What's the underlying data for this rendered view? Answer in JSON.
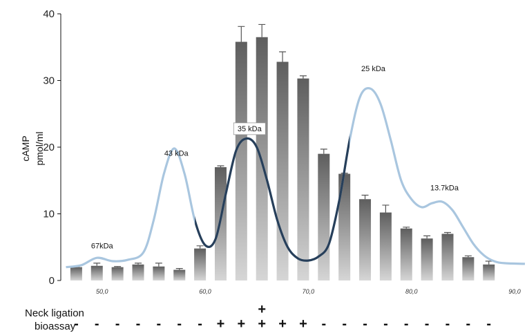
{
  "chart_data": {
    "type": "bar",
    "title": "",
    "ylabel_lines": [
      "cAMP",
      "pmol/ml"
    ],
    "ylim": [
      0,
      40
    ],
    "yticks": [
      0,
      10,
      20,
      30,
      40
    ],
    "xlim": [
      46,
      91
    ],
    "xticks": [
      50,
      60,
      70,
      80,
      90
    ],
    "xtick_labels": [
      "50,0",
      "60,0",
      "70,0",
      "80,0",
      "90,0"
    ],
    "grid": false,
    "bars": {
      "x": [
        47.5,
        49.5,
        51.5,
        53.5,
        55.5,
        57.5,
        59.5,
        61.5,
        63.5,
        65.5,
        67.5,
        69.5,
        71.5,
        73.5,
        75.5,
        77.5,
        79.5,
        81.5,
        83.5,
        85.5,
        87.5
      ],
      "values": [
        2.0,
        2.2,
        2.0,
        2.4,
        2.1,
        1.6,
        4.8,
        17.0,
        35.8,
        36.5,
        32.8,
        30.3,
        19.0,
        16.0,
        12.2,
        10.2,
        7.8,
        6.3,
        7.0,
        3.5,
        2.4
      ],
      "errors": [
        0.1,
        0.4,
        0.1,
        0.2,
        0.5,
        0.2,
        0.4,
        0.2,
        2.3,
        1.9,
        1.5,
        0.4,
        0.7,
        0.1,
        0.6,
        1.1,
        0.2,
        0.4,
        0.2,
        0.2,
        0.5
      ]
    },
    "elution_profile": {
      "x": [
        46.5,
        48,
        49.5,
        51,
        52.5,
        54,
        55,
        56,
        57,
        58,
        59,
        60,
        61,
        62,
        63,
        64,
        65,
        66,
        67,
        68,
        69,
        70,
        71,
        72,
        73,
        74,
        75,
        76,
        77,
        78,
        79,
        80,
        81,
        82,
        83,
        84,
        85,
        86,
        87,
        88,
        89,
        91
      ],
      "y": [
        2.0,
        2.3,
        3.4,
        2.9,
        3.1,
        4.2,
        9.0,
        16.0,
        19.8,
        16.0,
        9.0,
        5.3,
        6.2,
        13.0,
        19.5,
        21.3,
        20.0,
        15.0,
        9.0,
        5.0,
        3.3,
        3.0,
        3.6,
        5.5,
        12.0,
        21.0,
        27.5,
        28.8,
        26.5,
        21.0,
        15.0,
        12.2,
        11.0,
        11.6,
        11.8,
        10.5,
        8.0,
        5.5,
        3.8,
        2.9,
        2.6,
        2.5
      ],
      "dark_range": [
        59,
        74
      ]
    },
    "annotations": [
      {
        "text": "67kDa",
        "x": 50,
        "y": 4.8
      },
      {
        "text": "43 kDa",
        "x": 57.2,
        "y": 18.7
      },
      {
        "text": "35 kDa",
        "x": 64.3,
        "y": 22.4,
        "boxed": true
      },
      {
        "text": "25 kDa",
        "x": 76.3,
        "y": 31.4
      },
      {
        "text": "13.7kDa",
        "x": 83.2,
        "y": 13.5
      }
    ]
  },
  "bioassay": {
    "row_label_1": "Neck ligation",
    "row_label_2": "bioassay",
    "signs": [
      "-",
      "-",
      "-",
      "-",
      "-",
      "-",
      "-",
      "+",
      "+",
      "+",
      "+",
      "+",
      "-",
      "-",
      "-",
      "-",
      "-",
      "-",
      "-",
      "-",
      "-"
    ],
    "extra_plus_over_index": 9,
    "extra_plus": "+"
  }
}
